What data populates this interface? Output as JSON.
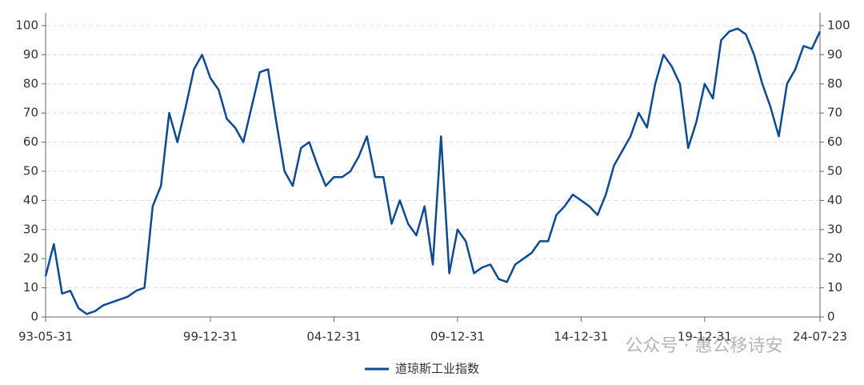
{
  "chart_data": {
    "type": "line",
    "categories": [
      "93-05-31",
      null,
      null,
      null,
      null,
      null,
      null,
      null,
      null,
      null,
      null,
      null,
      null,
      null,
      null,
      null,
      null,
      null,
      null,
      null,
      "99-12-31",
      null,
      null,
      null,
      null,
      null,
      null,
      null,
      null,
      null,
      null,
      null,
      null,
      null,
      null,
      "04-12-31",
      null,
      null,
      null,
      null,
      null,
      null,
      null,
      null,
      null,
      null,
      null,
      null,
      null,
      null,
      "09-12-31",
      null,
      null,
      null,
      null,
      null,
      null,
      null,
      null,
      null,
      null,
      null,
      null,
      null,
      null,
      "14-12-31",
      null,
      null,
      null,
      null,
      null,
      null,
      null,
      null,
      null,
      null,
      null,
      null,
      null,
      null,
      "19-12-31",
      null,
      null,
      null,
      null,
      null,
      null,
      null,
      null,
      null,
      null,
      null,
      null,
      null,
      "24-07-23"
    ],
    "series": [
      {
        "name": "道琼斯工业指数",
        "color": "#0b4a9a",
        "values": [
          14,
          25,
          8,
          9,
          3,
          1,
          2,
          4,
          5,
          6,
          7,
          9,
          10,
          38,
          45,
          70,
          60,
          72,
          85,
          90,
          82,
          78,
          68,
          65,
          60,
          72,
          84,
          85,
          67,
          50,
          45,
          58,
          60,
          52,
          45,
          48,
          48,
          50,
          55,
          62,
          48,
          48,
          32,
          40,
          32,
          28,
          38,
          18,
          62,
          15,
          30,
          26,
          15,
          17,
          18,
          13,
          12,
          18,
          20,
          22,
          26,
          26,
          35,
          38,
          42,
          40,
          38,
          35,
          42,
          52,
          57,
          62,
          70,
          65,
          80,
          90,
          86,
          80,
          58,
          67,
          80,
          75,
          95,
          98,
          99,
          97,
          90,
          80,
          72,
          62,
          80,
          85,
          93,
          92,
          98
        ]
      }
    ],
    "ylim": [
      0,
      100
    ],
    "yticks": [
      0,
      10,
      20,
      30,
      40,
      50,
      60,
      70,
      80,
      90,
      100
    ],
    "y2lim": [
      0,
      100
    ],
    "y2ticks": [
      0,
      10,
      20,
      30,
      40,
      50,
      60,
      70,
      80,
      90,
      100
    ],
    "grid": true,
    "legend": "bottom",
    "watermark": "公众号 · 惠公移诗安"
  }
}
